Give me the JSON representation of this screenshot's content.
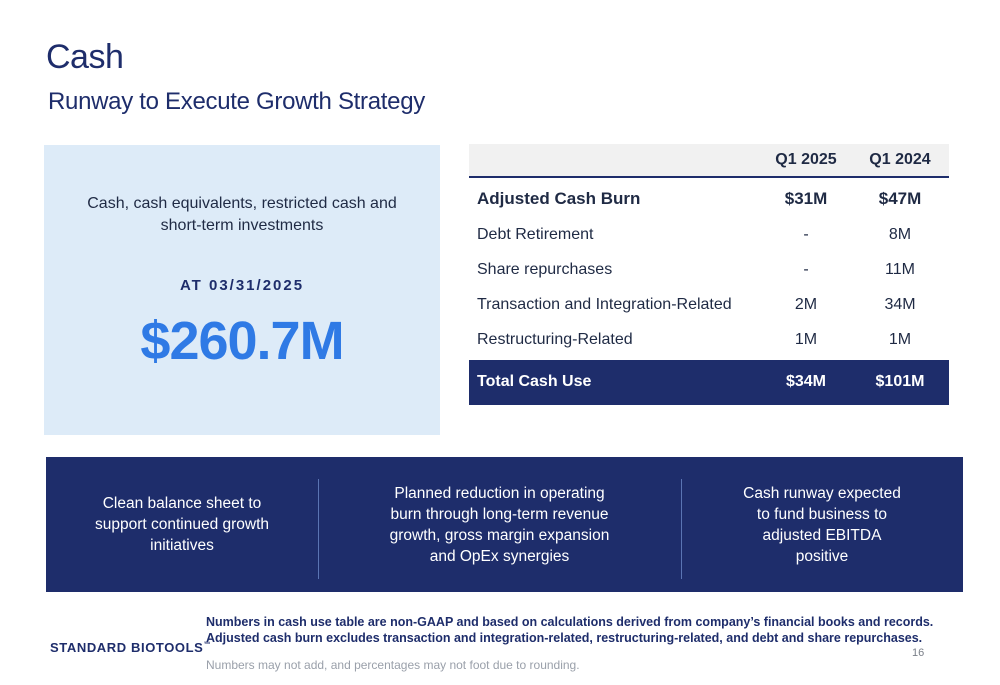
{
  "header": {
    "title": "Cash",
    "subtitle": "Runway to Execute Growth Strategy"
  },
  "cash_box": {
    "description_line1": "Cash, cash equivalents, restricted cash and",
    "description_line2": "short-term investments",
    "date_label": "AT 03/31/2025",
    "amount": "$260.7M"
  },
  "table": {
    "columns": [
      "",
      "Q1 2025",
      "Q1 2024"
    ],
    "rows": [
      {
        "label": "Adjusted Cash Burn",
        "q1_2025": "$31M",
        "q1_2024": "$47M"
      },
      {
        "label": "Debt Retirement",
        "q1_2025": "-",
        "q1_2024": "8M"
      },
      {
        "label": "Share repurchases",
        "q1_2025": "-",
        "q1_2024": "11M"
      },
      {
        "label": "Transaction and Integration-Related",
        "q1_2025": "2M",
        "q1_2024": "34M"
      },
      {
        "label": "Restructuring-Related",
        "q1_2025": "1M",
        "q1_2024": "1M"
      }
    ],
    "total": {
      "label": "Total Cash Use",
      "q1_2025": "$34M",
      "q1_2024": "$101M"
    }
  },
  "banner": {
    "items": [
      [
        "Clean balance sheet to",
        "support continued growth",
        "initiatives"
      ],
      [
        "Planned reduction in operating",
        "burn through long-term revenue",
        "growth, gross margin expansion",
        "and OpEx synergies"
      ],
      [
        "Cash runway expected",
        "to fund business to",
        "adjusted EBITDA",
        "positive"
      ]
    ]
  },
  "footer": {
    "logo_text": "STANDARD BIOTOOLS",
    "logo_tm": "™",
    "note_line1": "Numbers in cash use table are non-GAAP and based on calculations derived from company’s financial books and records.",
    "note_line2": "Adjusted cash burn excludes transaction and integration-related, restructuring-related, and debt and share repurchases.",
    "rounding_note": "Numbers may not add, and percentages may not foot due to rounding.",
    "page_number": "16"
  },
  "colors": {
    "navy": "#1e2d6b",
    "accent_blue": "#2f7ae5",
    "light_blue_panel": "#ddebf8"
  }
}
